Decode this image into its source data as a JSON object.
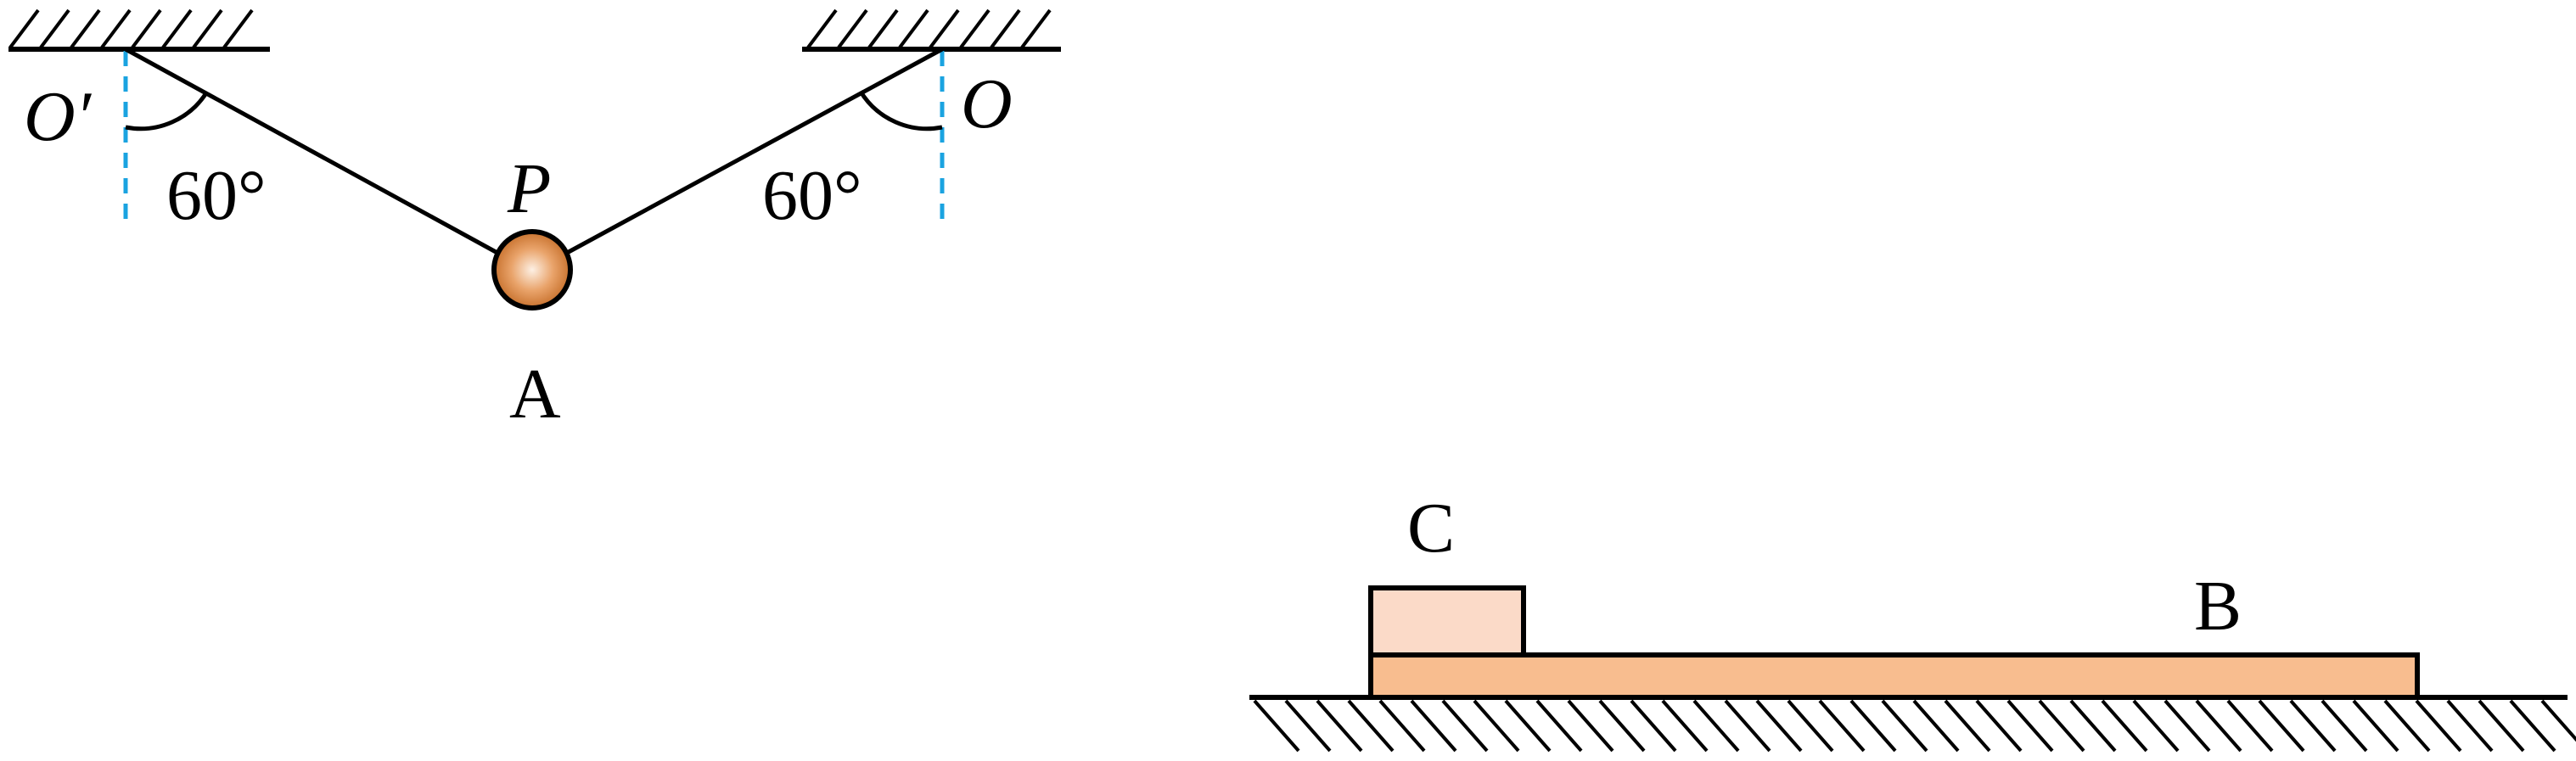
{
  "labels": {
    "pivot_left": "O′",
    "pivot_right": "O",
    "angle_left": "60°",
    "angle_right": "60°",
    "knot": "P",
    "ball": "A",
    "block_small": "C",
    "board_long": "B"
  },
  "colors": {
    "line": "#000000",
    "dashed_vertical": "#1aa3e0",
    "ball_center": "#fbe3cf",
    "ball_edge": "#cf7a35",
    "block_c_fill": "#fbdac8",
    "board_b_fill": "#f8bd8f"
  }
}
